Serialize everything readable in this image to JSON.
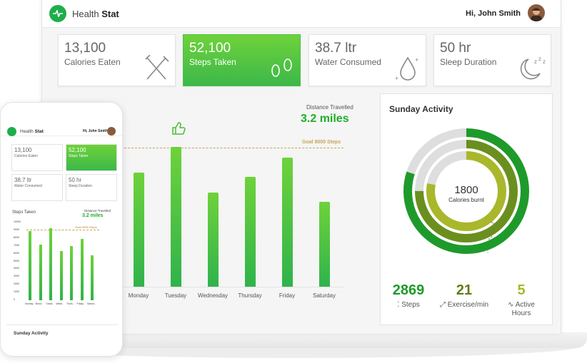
{
  "app": {
    "brand_prefix": "Health",
    "brand_bold": "Stat",
    "user_greeting": "Hi, John Smith"
  },
  "colors": {
    "accent": "#1fae4a",
    "bar_top": "#6ed23a",
    "bar_bottom": "#2fb34c",
    "goal": "#c9a35a",
    "ring_dark": "#1e9a2a",
    "ring_olive": "#6a8f1f",
    "ring_lime": "#a9b72b",
    "ring_track": "#dedede"
  },
  "cards": [
    {
      "value": "13,100",
      "label": "Calories Eaten",
      "icon": "fork-knife-icon",
      "active": false
    },
    {
      "value": "52,100",
      "label": "Steps Taken",
      "icon": "footprints-icon",
      "active": true
    },
    {
      "value": "38.7 ltr",
      "label": "Water Consumed",
      "icon": "water-drop-icon",
      "active": false
    },
    {
      "value": "50 hr",
      "label": "Sleep Duration",
      "icon": "moon-sleep-icon",
      "active": false
    }
  ],
  "chart_data": {
    "type": "bar",
    "title": "",
    "categories": [
      "Monday",
      "Tuesday",
      "Wednesday",
      "Thursday",
      "Friday",
      "Saturday"
    ],
    "values": [
      8500,
      10400,
      7000,
      8200,
      9600,
      6300
    ],
    "ylim": [
      0,
      11000
    ],
    "goal_value": 9000,
    "goal_label": "Goal 9000 Steps",
    "distance_label": "Distance Travelled",
    "distance_value": "3.2 miles",
    "thumbs_icon": "thumbs-up-icon",
    "top_category": "Tuesday"
  },
  "activity": {
    "title": "Sunday Activity",
    "center_value": "1800",
    "center_label": "Calories burnt",
    "rings": [
      {
        "name": "Steps",
        "fraction": 0.8
      },
      {
        "name": "Exercise",
        "fraction": 0.75
      },
      {
        "name": "Active",
        "fraction": 0.78
      }
    ],
    "stats": [
      {
        "value": "2869",
        "label": "Steps",
        "icon": "footsteps-icon",
        "color": "#1e9a2a"
      },
      {
        "value": "21",
        "label": "Exercise/min",
        "icon": "dumbbell-icon",
        "color": "#5f7d16"
      },
      {
        "value": "5",
        "label_line1": "Active",
        "label_line2": "Hours",
        "icon": "pulse-icon",
        "color": "#a9b72b"
      }
    ]
  },
  "phone": {
    "cards": [
      {
        "value": "13,100",
        "label": "Calories Eaten"
      },
      {
        "value": "52,100",
        "label": "Steps Taken"
      },
      {
        "value": "38.7 ltr",
        "label": "Water Consumed"
      },
      {
        "value": "50 hr",
        "label": "Sleep Duration"
      }
    ],
    "section_title": "Steps Taken",
    "distance_label": "Distance Travelled",
    "distance_value": "3.2 miles",
    "goal_label": "Goal 9000 Steps",
    "y_ticks": [
      "10000",
      "9000",
      "8000",
      "7000",
      "6000",
      "5000",
      "4000",
      "3000",
      "2000",
      "1000",
      "0"
    ],
    "chart_data": {
      "type": "bar",
      "categories": [
        "Sunday",
        "Mond..",
        "Tuesd..",
        "Wedn..",
        "Thurs..",
        "Friday",
        "Saturd.."
      ],
      "values": [
        8900,
        7200,
        9300,
        6300,
        7000,
        7900,
        5800
      ],
      "ylim": [
        0,
        10000
      ]
    },
    "bottom_title": "Sunday Activity"
  }
}
